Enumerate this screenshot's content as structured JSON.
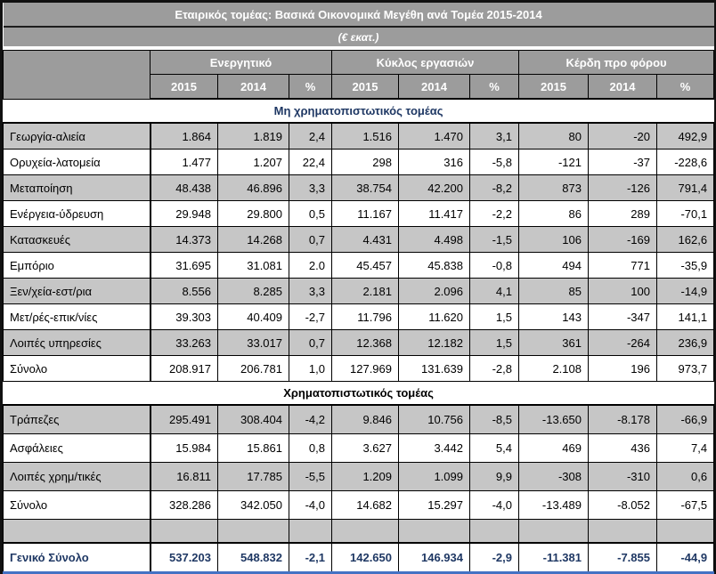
{
  "table": {
    "title": "Εταιρικός τομέας: Βασικά Οικονομικά Μεγέθη ανά Τομέα 2015-2014",
    "subtitle": "(€ εκατ.)",
    "column_groups": [
      {
        "label": "Ενεργητικό"
      },
      {
        "label": "Κύκλος εργασιών"
      },
      {
        "label": "Κέρδη προ φόρου"
      }
    ],
    "sub_headers": [
      "2015",
      "2014",
      "%"
    ],
    "sections": [
      {
        "header": "Μη χρηματοπιστωτικός τομέας",
        "header_style": "navy",
        "rows": [
          {
            "label": "Γεωργία-αλιεία",
            "values": [
              "1.864",
              "1.819",
              "2,4",
              "1.516",
              "1.470",
              "3,1",
              "80",
              "-20",
              "492,9"
            ]
          },
          {
            "label": "Ορυχεία-λατομεία",
            "values": [
              "1.477",
              "1.207",
              "22,4",
              "298",
              "316",
              "-5,8",
              "-121",
              "-37",
              "-228,6"
            ]
          },
          {
            "label": "Μεταποίηση",
            "values": [
              "48.438",
              "46.896",
              "3,3",
              "38.754",
              "42.200",
              "-8,2",
              "873",
              "-126",
              "791,4"
            ]
          },
          {
            "label": "Ενέργεια-ύδρευση",
            "values": [
              "29.948",
              "29.800",
              "0,5",
              "11.167",
              "11.417",
              "-2,2",
              "86",
              "289",
              "-70,1"
            ]
          },
          {
            "label": "Κατασκευές",
            "values": [
              "14.373",
              "14.268",
              "0,7",
              "4.431",
              "4.498",
              "-1,5",
              "106",
              "-169",
              "162,6"
            ]
          },
          {
            "label": "Εμπόριο",
            "values": [
              "31.695",
              "31.081",
              "2.0",
              "45.457",
              "45.838",
              "-0,8",
              "494",
              "771",
              "-35,9"
            ]
          },
          {
            "label": "Ξεν/χεία-εστ/ρια",
            "values": [
              "8.556",
              "8.285",
              "3,3",
              "2.181",
              "2.096",
              "4,1",
              "85",
              "100",
              "-14,9"
            ]
          },
          {
            "label": "Μετ/ρές-επικ/νίες",
            "values": [
              "39.303",
              "40.409",
              "-2,7",
              "11.796",
              "11.620",
              "1,5",
              "143",
              "-347",
              "141,1"
            ]
          },
          {
            "label": "Λοιπές υπηρεσίες",
            "values": [
              "33.263",
              "33.017",
              "0,7",
              "12.368",
              "12.182",
              "1,5",
              "361",
              "-264",
              "236,9"
            ]
          },
          {
            "label": "Σύνολο",
            "values": [
              "208.917",
              "206.781",
              "1,0",
              "127.969",
              "131.639",
              "-2,8",
              "2.108",
              "196",
              "973,7"
            ]
          }
        ]
      },
      {
        "header": "Χρηματοπιστωτικός τομέας",
        "header_style": "black",
        "rows": [
          {
            "label": "Τράπεζες",
            "values": [
              "295.491",
              "308.404",
              "-4,2",
              "9.846",
              "10.756",
              "-8,5",
              "-13.650",
              "-8.178",
              "-66,9"
            ]
          },
          {
            "label": "Ασφάλειες",
            "values": [
              "15.984",
              "15.861",
              "0,8",
              "3.627",
              "3.442",
              "5,4",
              "469",
              "436",
              "7,4"
            ]
          },
          {
            "label": "Λοιπές χρημ/τικές",
            "values": [
              "16.811",
              "17.785",
              "-5,5",
              "1.209",
              "1.099",
              "9,9",
              "-308",
              "-310",
              "0,6"
            ]
          },
          {
            "label": "Σύνολο",
            "values": [
              "328.286",
              "342.050",
              "-4,0",
              "14.682",
              "15.297",
              "-4,0",
              "-13.489",
              "-8.052",
              "-67,5"
            ]
          }
        ]
      }
    ],
    "grand_total": {
      "label": "Γενικό Σύνολο",
      "values": [
        "537.203",
        "548.832",
        "-2,1",
        "142.650",
        "146.934",
        "-2,9",
        "-11.381",
        "-7.855",
        "-44,9"
      ]
    },
    "colors": {
      "header_bg": "#9C9C9C",
      "stripe_bg": "#C6C6C6",
      "navy_text": "#1F3864",
      "grand_total_rule": "#4472C4"
    }
  }
}
